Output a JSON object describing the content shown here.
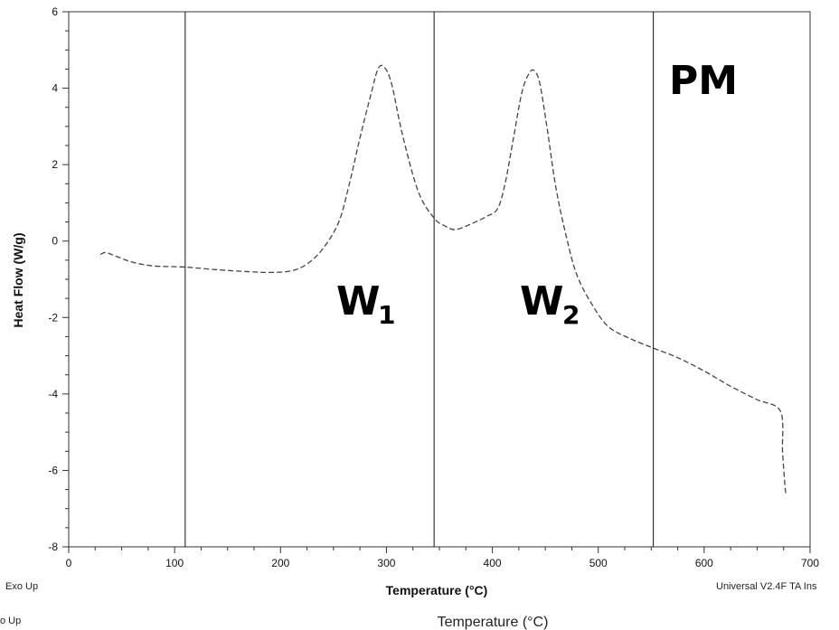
{
  "chart_data": {
    "type": "line",
    "xlabel": "Temperature (°C)",
    "ylabel": "Heat Flow (W/g)",
    "xlim": [
      0,
      700
    ],
    "ylim": [
      -8,
      6
    ],
    "x_ticks": [
      0,
      100,
      200,
      300,
      400,
      500,
      600,
      700
    ],
    "y_ticks": [
      -8,
      -6,
      -4,
      -2,
      0,
      2,
      4,
      6
    ],
    "grid": false,
    "line_style": "dashed",
    "line_color": "#444444",
    "series": [
      {
        "x": [
          30,
          35,
          45,
          60,
          80,
          110,
          140,
          170,
          190,
          210,
          225,
          240,
          255,
          265,
          275,
          285,
          292,
          298,
          305,
          315,
          330,
          345,
          355,
          365,
          380,
          395,
          405,
          412,
          420,
          428,
          435,
          440,
          445,
          452,
          460,
          470,
          480,
          495,
          510,
          530,
          552,
          575,
          600,
          625,
          650,
          672,
          674,
          676,
          677
        ],
        "y": [
          -0.35,
          -0.3,
          -0.4,
          -0.55,
          -0.65,
          -0.68,
          -0.75,
          -0.8,
          -0.82,
          -0.78,
          -0.6,
          -0.2,
          0.5,
          1.5,
          2.7,
          3.8,
          4.5,
          4.55,
          4.1,
          2.8,
          1.3,
          0.6,
          0.4,
          0.3,
          0.45,
          0.65,
          0.85,
          1.5,
          2.7,
          3.9,
          4.4,
          4.45,
          4.1,
          2.9,
          1.4,
          0.1,
          -0.9,
          -1.7,
          -2.25,
          -2.55,
          -2.8,
          -3.05,
          -3.4,
          -3.8,
          -4.15,
          -4.45,
          -5.5,
          -6.3,
          -6.6
        ]
      }
    ],
    "vertical_lines": [
      110,
      345,
      552
    ],
    "annotations": {
      "w1_main": "W",
      "w1_sub": "1",
      "w2_main": "W",
      "w2_sub": "2",
      "pm": "PM"
    }
  },
  "footer": {
    "left": "Exo Up",
    "right": "Universal V2.4F TA Ins"
  },
  "ghost": {
    "left": "o Up",
    "center": "Temperature (°C)"
  }
}
